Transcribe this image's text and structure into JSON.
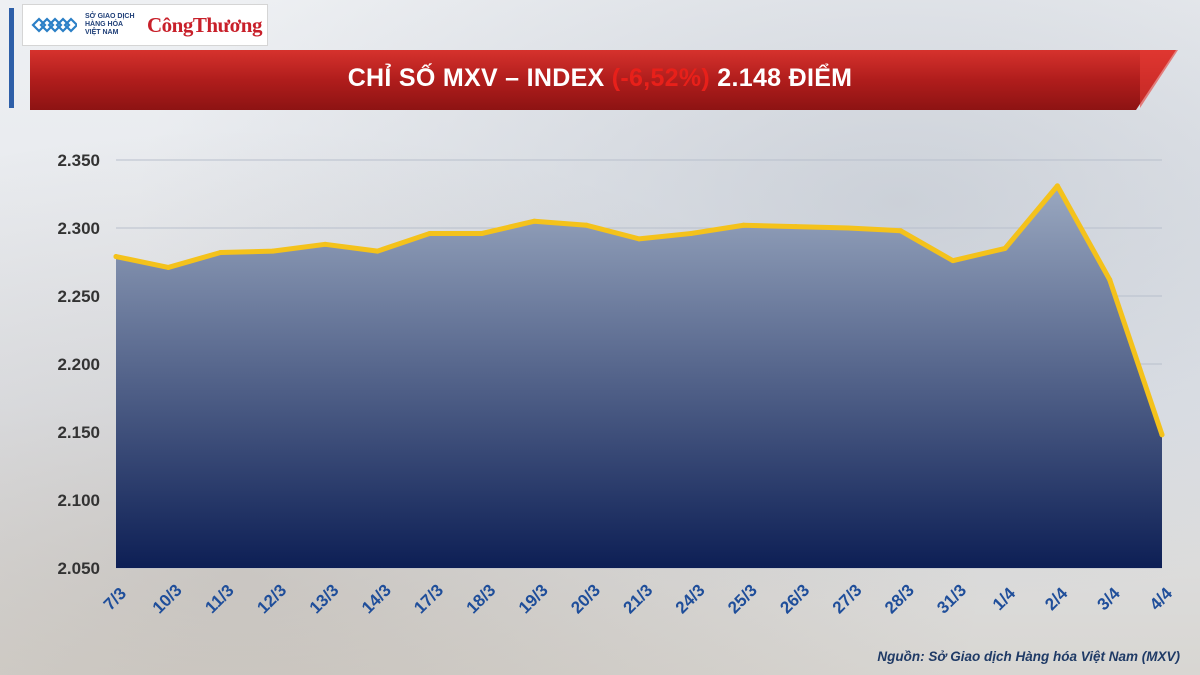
{
  "header": {
    "mxv_logo_lines": [
      "SỞ GIAO DỊCH",
      "HÀNG HÓA",
      "VIỆT NAM"
    ],
    "partner_logo": "CôngThương",
    "title_prefix": "CHỈ SỐ MXV – INDEX ",
    "title_change": "(-6,52%)",
    "title_suffix": " 2.148 ĐIỂM"
  },
  "chart_data": {
    "type": "area",
    "categories": [
      "7/3",
      "10/3",
      "11/3",
      "12/3",
      "13/3",
      "14/3",
      "17/3",
      "18/3",
      "19/3",
      "20/3",
      "21/3",
      "24/3",
      "25/3",
      "26/3",
      "27/3",
      "28/3",
      "31/3",
      "1/4",
      "2/4",
      "3/4",
      "4/4"
    ],
    "values": [
      2279,
      2271,
      2282,
      2283,
      2288,
      2283,
      2296,
      2296,
      2305,
      2302,
      2292,
      2296,
      2302,
      2301,
      2300,
      2298,
      2276,
      2285,
      2331,
      2262,
      2148
    ],
    "ylim": [
      2050,
      2350
    ],
    "yticks": [
      2050,
      2100,
      2150,
      2200,
      2250,
      2300,
      2350
    ],
    "ytick_labels": [
      "2.050",
      "2.100",
      "2.150",
      "2.200",
      "2.250",
      "2.300",
      "2.350"
    ],
    "grid": true,
    "colors": {
      "line": "#f4c21b",
      "fill_top": "#9aa8c0",
      "fill_bottom": "#0d1f55",
      "grid": "#b8bfcc",
      "xlabel": "#1f4e9a",
      "ylabel": "#333333"
    }
  },
  "footer": {
    "source": "Nguồn: Sở Giao dịch Hàng hóa Việt Nam (MXV)"
  }
}
